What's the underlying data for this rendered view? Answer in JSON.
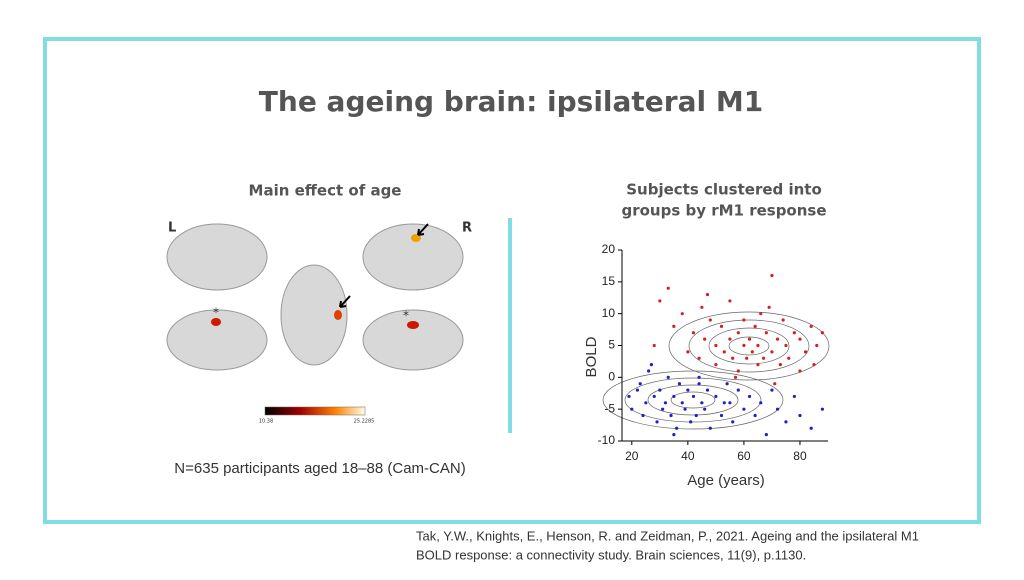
{
  "title": "The ageing brain: ipsilateral M1",
  "left_panel": {
    "heading": "Main effect of age",
    "hemisphere_left": "L",
    "hemisphere_right": "R",
    "marker_1": "*",
    "marker_2": "*",
    "colorbar_min": "10.38",
    "colorbar_max": "25.2285",
    "caption": "N=635 participants aged 18–88 (Cam-CAN)"
  },
  "right_panel": {
    "heading_line_1": "Subjects clustered into",
    "heading_line_2": "groups by rM1 response"
  },
  "chart_data": {
    "type": "scatter",
    "x_label": "Age (years)",
    "y_label": "BOLD",
    "xlim": [
      16.5,
      90
    ],
    "ylim": [
      -10,
      20
    ],
    "xticks": [
      20,
      40,
      60,
      80
    ],
    "yticks": [
      -10,
      -5,
      0,
      5,
      10,
      15,
      20
    ],
    "series": [
      {
        "color": "#d62020",
        "x": [
          30,
          35,
          38,
          40,
          42,
          44,
          45,
          46,
          48,
          50,
          50,
          52,
          53,
          55,
          55,
          56,
          58,
          58,
          60,
          60,
          61,
          62,
          63,
          64,
          65,
          65,
          66,
          67,
          68,
          70,
          70,
          72,
          73,
          74,
          75,
          76,
          78,
          80,
          80,
          82,
          84,
          85,
          86,
          28,
          33,
          47,
          57,
          69,
          71,
          88
        ],
        "values": [
          12,
          8,
          10,
          4,
          7,
          3,
          11,
          6,
          9,
          2,
          5,
          8,
          4,
          12,
          6,
          3,
          7,
          1,
          5,
          9,
          3,
          6,
          4,
          8,
          2,
          5,
          10,
          3,
          7,
          4,
          16,
          6,
          2,
          9,
          5,
          3,
          7,
          1,
          6,
          4,
          8,
          2,
          5,
          5,
          14,
          13,
          0,
          11,
          -1,
          7
        ]
      },
      {
        "color": "#2020c8",
        "x": [
          19,
          20,
          22,
          24,
          25,
          26,
          28,
          29,
          30,
          31,
          32,
          33,
          34,
          35,
          36,
          37,
          38,
          39,
          40,
          41,
          42,
          43,
          44,
          45,
          46,
          47,
          48,
          50,
          52,
          54,
          55,
          56,
          58,
          60,
          62,
          64,
          66,
          68,
          70,
          72,
          75,
          78,
          80,
          84,
          88,
          23,
          27,
          35,
          44,
          53
        ],
        "values": [
          -3,
          -5,
          -2,
          -6,
          -4,
          1,
          -3,
          -7,
          -2,
          -5,
          -4,
          0,
          -6,
          -3,
          -8,
          -1,
          -4,
          -5,
          -2,
          -7,
          -3,
          -6,
          -1,
          -4,
          -5,
          -2,
          -8,
          -3,
          -6,
          -1,
          -4,
          -7,
          -2,
          -5,
          -3,
          -6,
          -4,
          -9,
          -2,
          -5,
          -7,
          -3,
          -6,
          -8,
          -5,
          -1,
          2,
          -9,
          0,
          -4
        ]
      }
    ]
  },
  "citation_line_1": "Tak, Y.W., Knights, E., Henson, R. and Zeidman, P., 2021. Ageing and the ipsilateral M1",
  "citation_line_2": "BOLD response: a connectivity study. Brain sciences, 11(9), p.1130."
}
